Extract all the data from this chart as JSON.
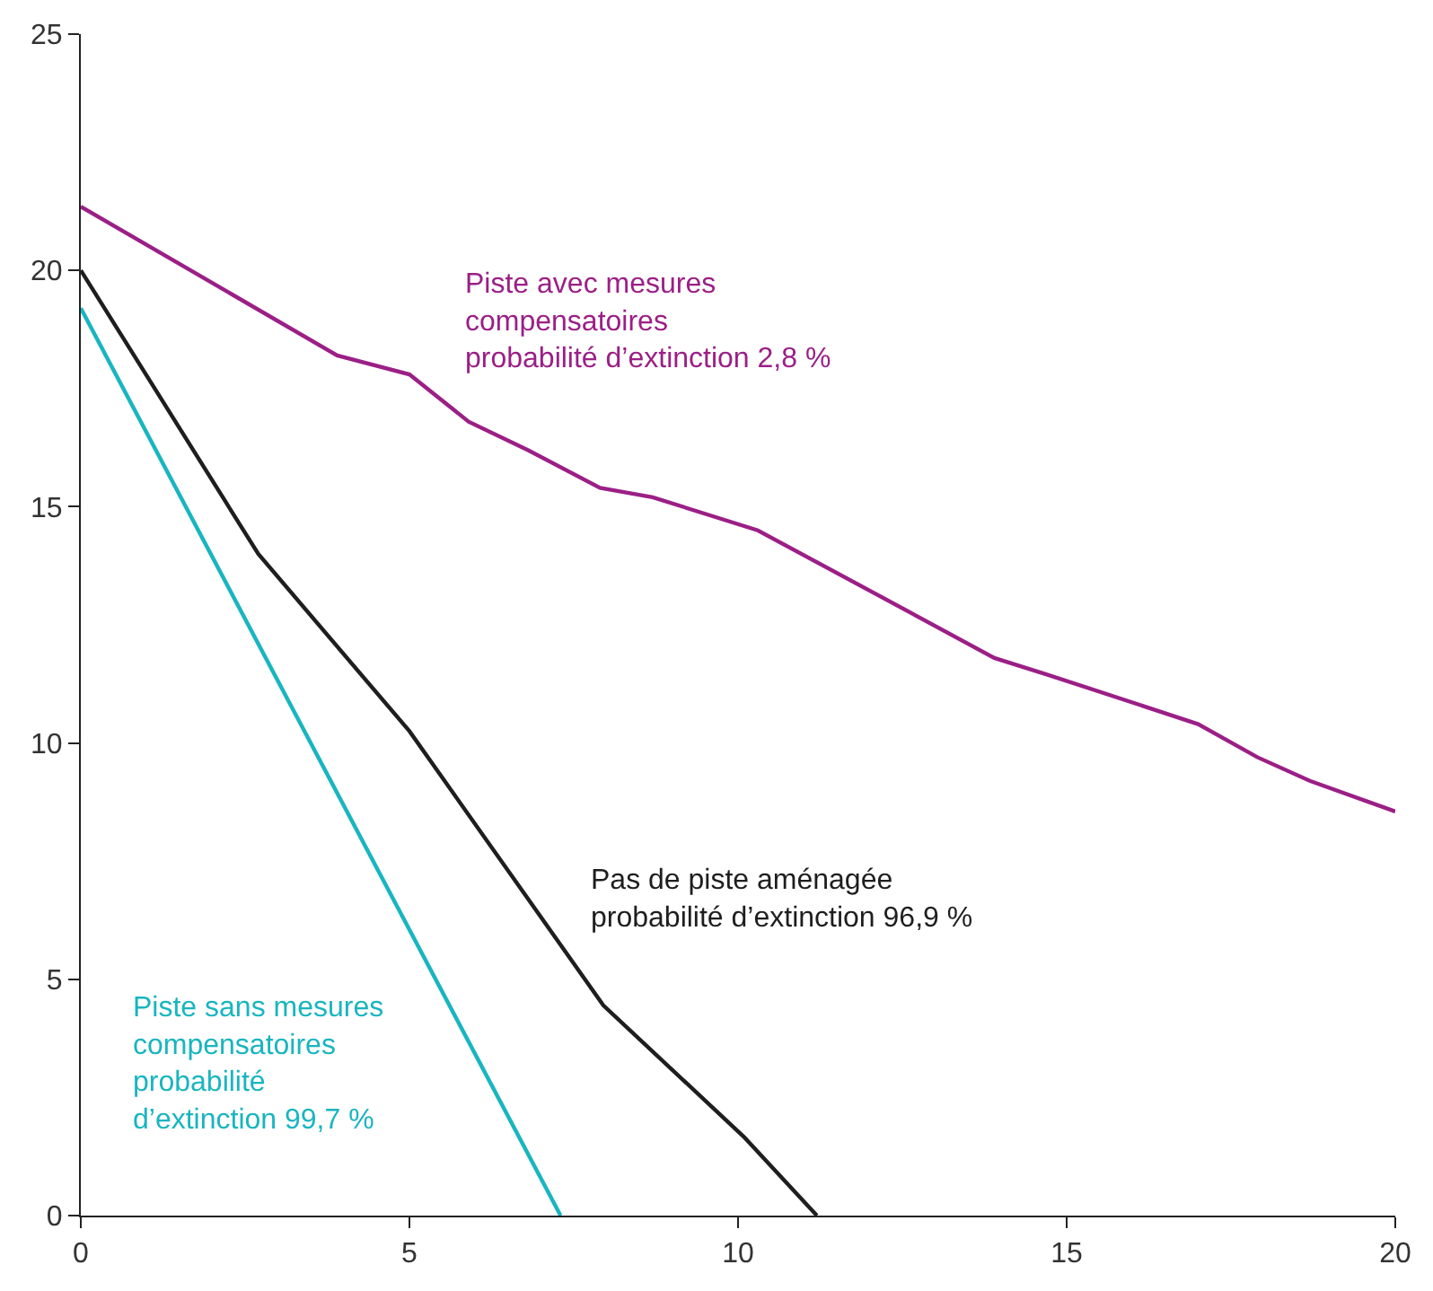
{
  "chart_data": {
    "type": "line",
    "xlim": [
      0,
      20
    ],
    "ylim": [
      0,
      25
    ],
    "xticks": [
      0,
      5,
      10,
      15,
      20
    ],
    "yticks": [
      0,
      5,
      10,
      15,
      20,
      25
    ],
    "legend": false,
    "marker": "none",
    "line_style": "solid",
    "series": [
      {
        "color": "#9b1f86",
        "x": [
          0,
          3.9,
          5,
          5.9,
          6.8,
          7.9,
          8.7,
          10.3,
          13.9,
          14.7,
          17,
          17.9,
          18.7,
          20
        ],
        "values": [
          21.35,
          18.2,
          17.8,
          16.8,
          16.2,
          15.4,
          15.2,
          14.5,
          11.8,
          11.45,
          10.4,
          9.7,
          9.2,
          8.55
        ]
      },
      {
        "color": "#1e1e1e",
        "x": [
          0,
          2.7,
          5,
          7.95,
          10.1,
          11.2
        ],
        "values": [
          20,
          14,
          10.25,
          4.45,
          1.65,
          0
        ]
      },
      {
        "color": "#19b5c0",
        "x": [
          0,
          7.3
        ],
        "values": [
          19.2,
          0
        ]
      }
    ],
    "annotations": [
      "Piste avec mesures\ncompensatoires\nprobabilité d’extinction 2,8 %",
      "Pas de piste aménagée\nprobabilité d’extinction 96,9 %",
      "Piste sans mesures\ncompensatoires\nprobabilité\nd’extinction 99,7 %"
    ]
  }
}
